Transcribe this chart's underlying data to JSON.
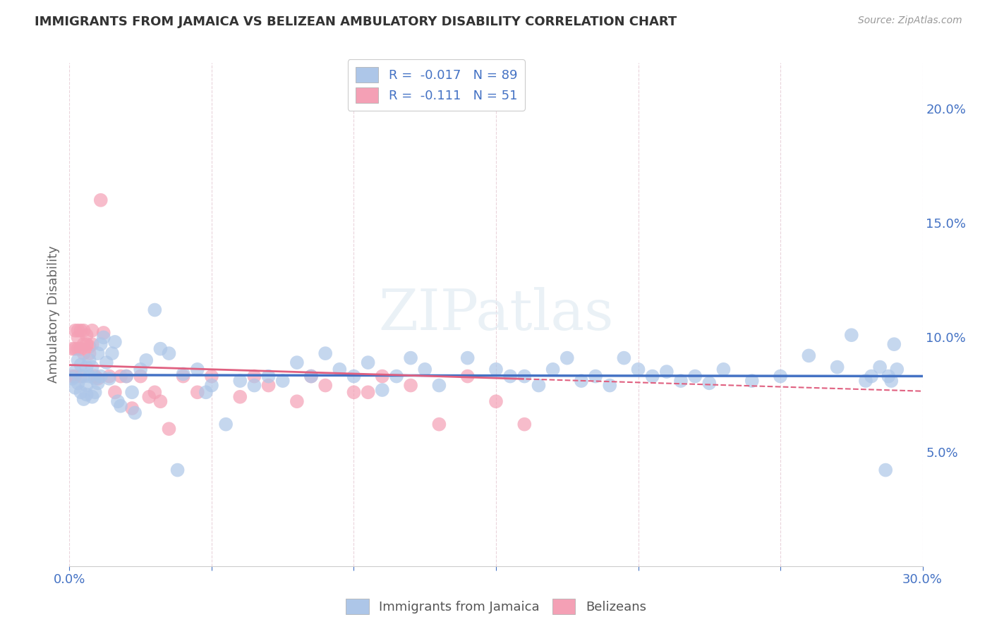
{
  "title": "IMMIGRANTS FROM JAMAICA VS BELIZEAN AMBULATORY DISABILITY CORRELATION CHART",
  "source": "Source: ZipAtlas.com",
  "ylabel": "Ambulatory Disability",
  "xlim": [
    0.0,
    0.3
  ],
  "ylim": [
    0.0,
    0.22
  ],
  "xticks": [
    0.0,
    0.05,
    0.1,
    0.15,
    0.2,
    0.25,
    0.3
  ],
  "yticks_right": [
    0.05,
    0.1,
    0.15,
    0.2
  ],
  "ytick_labels_right": [
    "5.0%",
    "10.0%",
    "15.0%",
    "20.0%"
  ],
  "xtick_labels": [
    "0.0%",
    "",
    "",
    "",
    "",
    "",
    "30.0%"
  ],
  "series1_color": "#adc6e8",
  "series2_color": "#f4a0b5",
  "trendline1_color": "#4472c4",
  "trendline2_color": "#e06080",
  "watermark": "ZIPatlas",
  "R1": -0.017,
  "N1": 89,
  "R2": -0.111,
  "N2": 51,
  "scatter1_x": [
    0.001,
    0.002,
    0.002,
    0.003,
    0.003,
    0.004,
    0.004,
    0.005,
    0.005,
    0.006,
    0.006,
    0.006,
    0.007,
    0.007,
    0.008,
    0.008,
    0.009,
    0.009,
    0.01,
    0.01,
    0.011,
    0.011,
    0.012,
    0.013,
    0.014,
    0.015,
    0.016,
    0.017,
    0.018,
    0.02,
    0.022,
    0.023,
    0.025,
    0.027,
    0.03,
    0.032,
    0.035,
    0.038,
    0.04,
    0.045,
    0.048,
    0.05,
    0.055,
    0.06,
    0.065,
    0.07,
    0.075,
    0.08,
    0.085,
    0.09,
    0.095,
    0.1,
    0.105,
    0.11,
    0.115,
    0.12,
    0.125,
    0.13,
    0.14,
    0.15,
    0.155,
    0.16,
    0.165,
    0.17,
    0.175,
    0.18,
    0.185,
    0.19,
    0.195,
    0.2,
    0.205,
    0.21,
    0.215,
    0.22,
    0.225,
    0.23,
    0.24,
    0.25,
    0.26,
    0.27,
    0.275,
    0.28,
    0.282,
    0.285,
    0.287,
    0.288,
    0.289,
    0.29,
    0.291
  ],
  "scatter1_y": [
    0.082,
    0.078,
    0.085,
    0.08,
    0.09,
    0.076,
    0.088,
    0.073,
    0.083,
    0.079,
    0.087,
    0.075,
    0.083,
    0.09,
    0.087,
    0.074,
    0.082,
    0.076,
    0.093,
    0.08,
    0.097,
    0.083,
    0.1,
    0.089,
    0.082,
    0.093,
    0.098,
    0.072,
    0.07,
    0.083,
    0.076,
    0.067,
    0.086,
    0.09,
    0.112,
    0.095,
    0.093,
    0.042,
    0.084,
    0.086,
    0.076,
    0.079,
    0.062,
    0.081,
    0.079,
    0.083,
    0.081,
    0.089,
    0.083,
    0.093,
    0.086,
    0.083,
    0.089,
    0.077,
    0.083,
    0.091,
    0.086,
    0.079,
    0.091,
    0.086,
    0.083,
    0.083,
    0.079,
    0.086,
    0.091,
    0.081,
    0.083,
    0.079,
    0.091,
    0.086,
    0.083,
    0.085,
    0.081,
    0.083,
    0.08,
    0.086,
    0.081,
    0.083,
    0.092,
    0.087,
    0.101,
    0.081,
    0.083,
    0.087,
    0.042,
    0.083,
    0.081,
    0.097,
    0.086
  ],
  "scatter2_x": [
    0.001,
    0.001,
    0.002,
    0.002,
    0.002,
    0.003,
    0.003,
    0.003,
    0.004,
    0.004,
    0.004,
    0.005,
    0.005,
    0.005,
    0.006,
    0.006,
    0.007,
    0.007,
    0.008,
    0.008,
    0.009,
    0.01,
    0.011,
    0.012,
    0.014,
    0.016,
    0.018,
    0.02,
    0.022,
    0.025,
    0.028,
    0.03,
    0.032,
    0.035,
    0.04,
    0.045,
    0.05,
    0.06,
    0.065,
    0.07,
    0.08,
    0.085,
    0.09,
    0.1,
    0.105,
    0.11,
    0.12,
    0.13,
    0.14,
    0.15,
    0.16
  ],
  "scatter2_y": [
    0.083,
    0.095,
    0.103,
    0.095,
    0.083,
    0.1,
    0.095,
    0.103,
    0.103,
    0.095,
    0.083,
    0.103,
    0.097,
    0.093,
    0.101,
    0.097,
    0.096,
    0.093,
    0.103,
    0.097,
    0.083,
    0.082,
    0.16,
    0.102,
    0.083,
    0.076,
    0.083,
    0.083,
    0.069,
    0.083,
    0.074,
    0.076,
    0.072,
    0.06,
    0.083,
    0.076,
    0.083,
    0.074,
    0.083,
    0.079,
    0.072,
    0.083,
    0.079,
    0.076,
    0.076,
    0.083,
    0.079,
    0.062,
    0.083,
    0.072,
    0.062
  ]
}
